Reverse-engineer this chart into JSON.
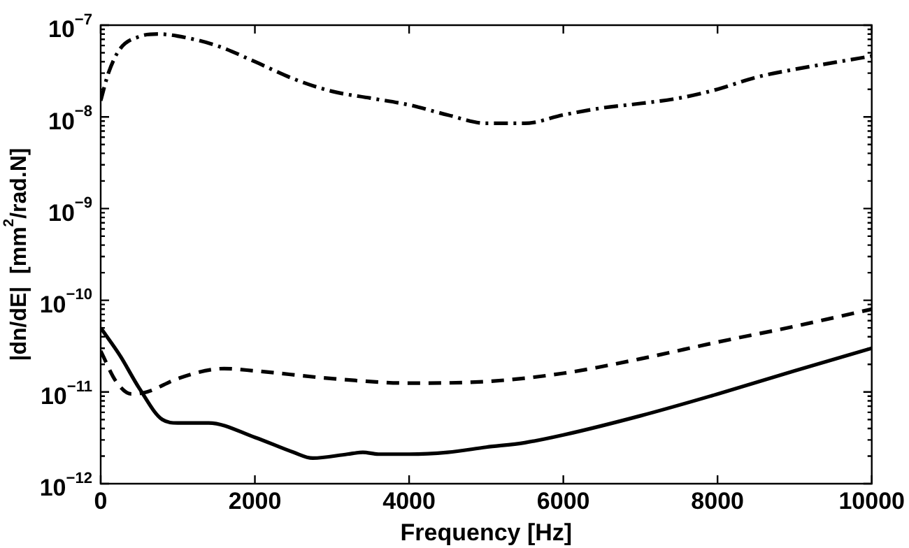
{
  "chart_data": {
    "type": "line",
    "xlabel": "Frequency [Hz]",
    "ylabel": "|dn/dE|  [mm$^{2}$/rad.N]",
    "xlim": [
      0,
      10000
    ],
    "xticks": [
      0,
      2000,
      4000,
      6000,
      8000,
      10000
    ],
    "ylim": [
      1e-12,
      1e-07
    ],
    "yticks": [
      {
        "value": 1e-12,
        "label": "10$^{−12}$"
      },
      {
        "value": 1e-11,
        "label": "10$^{−11}$"
      },
      {
        "value": 1e-10,
        "label": "10$^{−10}$"
      },
      {
        "value": 1e-09,
        "label": "10$^{−9}$"
      },
      {
        "value": 1e-08,
        "label": "10$^{−8}$"
      },
      {
        "value": 1e-07,
        "label": "10$^{−7}$"
      }
    ],
    "log": "y",
    "grid": false,
    "legend": false,
    "marker": "none",
    "series": [
      {
        "color": "#000000",
        "line_style": "dashdot",
        "x": [
          0,
          100,
          250,
          500,
          750,
          1000,
          1500,
          2000,
          2500,
          3000,
          3500,
          4000,
          4500,
          5000,
          5500,
          6000,
          6500,
          7000,
          7500,
          8000,
          8500,
          9000,
          9500,
          10000
        ],
        "values": [
          1.5e-08,
          3e-08,
          5.5e-08,
          7.5e-08,
          8e-08,
          7.6e-08,
          6e-08,
          4e-08,
          2.6e-08,
          1.9e-08,
          1.6e-08,
          1.35e-08,
          1.05e-08,
          8.5e-09,
          8.5e-09,
          1.05e-08,
          1.25e-08,
          1.4e-08,
          1.6e-08,
          2e-08,
          2.7e-08,
          3.3e-08,
          3.9e-08,
          4.6e-08
        ]
      },
      {
        "color": "#000000",
        "line_style": "dashed",
        "x": [
          0,
          200,
          400,
          600,
          1000,
          1600,
          2000,
          3000,
          4000,
          5000,
          6000,
          7000,
          8000,
          9000,
          10000
        ],
        "values": [
          2.8e-11,
          1.3e-11,
          9.5e-12,
          1e-11,
          1.4e-11,
          1.8e-11,
          1.7e-11,
          1.4e-11,
          1.25e-11,
          1.3e-11,
          1.6e-11,
          2.3e-11,
          3.5e-11,
          5.2e-11,
          8e-11
        ]
      },
      {
        "color": "#000000",
        "line_style": "solid",
        "x": [
          0,
          250,
          500,
          800,
          1000,
          1400,
          2000,
          2500,
          2750,
          3200,
          3400,
          3600,
          4000,
          4500,
          5000,
          5500,
          6000,
          7000,
          8000,
          9000,
          10000
        ],
        "values": [
          5e-11,
          2.5e-11,
          1.1e-11,
          5e-12,
          4.6e-12,
          4.6e-12,
          3.2e-12,
          2.2e-12,
          1.9e-12,
          2.1e-12,
          2.2e-12,
          2.1e-12,
          2.1e-12,
          2.2e-12,
          2.5e-12,
          2.8e-12,
          3.4e-12,
          5.5e-12,
          9.5e-12,
          1.7e-11,
          3e-11
        ]
      }
    ]
  }
}
